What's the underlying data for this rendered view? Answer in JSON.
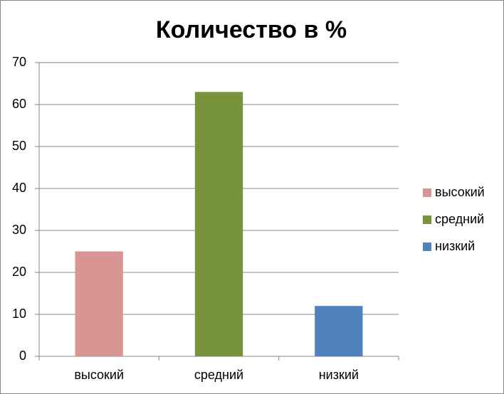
{
  "chart_data": {
    "type": "bar",
    "title": "Количество в %",
    "categories": [
      "высокий",
      "средний",
      "низкий"
    ],
    "values": [
      25,
      63,
      12
    ],
    "colors": [
      "#d99594",
      "#77933c",
      "#4f81bd"
    ],
    "ylim": [
      0,
      70
    ],
    "yticks": [
      0,
      10,
      20,
      30,
      40,
      50,
      60,
      70
    ],
    "grid": true,
    "legend": "right"
  }
}
